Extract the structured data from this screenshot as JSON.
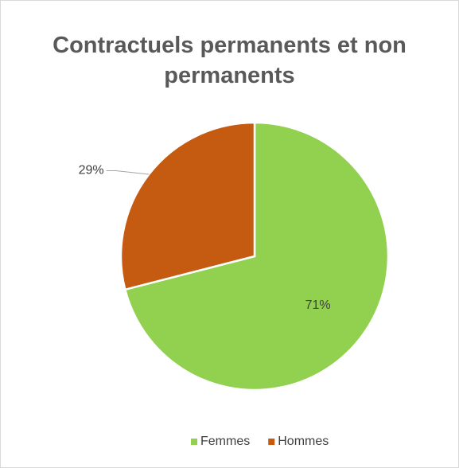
{
  "chart_data": {
    "type": "pie",
    "title": "Contractuels permanents et non permanents",
    "categories": [
      "Femmes",
      "Hommes"
    ],
    "values": [
      71,
      29
    ],
    "value_labels": [
      "71%",
      "29%"
    ],
    "colors": [
      "#92d050",
      "#c55a11"
    ],
    "legend": "bottom"
  }
}
